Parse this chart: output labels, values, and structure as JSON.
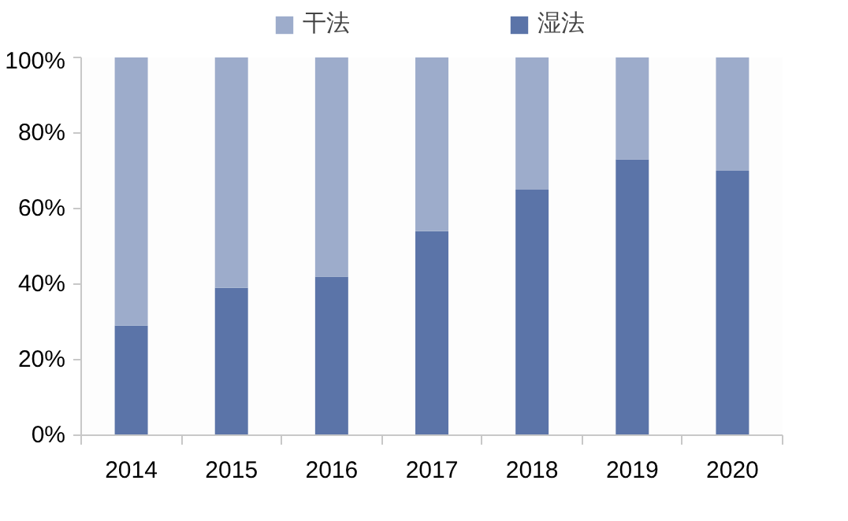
{
  "chart_data": {
    "type": "bar",
    "stacked": true,
    "categories": [
      "2014",
      "2015",
      "2016",
      "2017",
      "2018",
      "2019",
      "2020"
    ],
    "series": [
      {
        "name": "湿法",
        "color": "#5b74a8",
        "values": [
          29,
          39,
          42,
          54,
          65,
          73,
          70
        ]
      },
      {
        "name": "干法",
        "color": "#9daccb",
        "values": [
          71,
          61,
          58,
          46,
          35,
          27,
          30
        ]
      }
    ],
    "ylim": [
      0,
      100
    ],
    "yticks": [
      {
        "value": 0,
        "label": "0%"
      },
      {
        "value": 20,
        "label": "20%"
      },
      {
        "value": 40,
        "label": "40%"
      },
      {
        "value": 60,
        "label": "60%"
      },
      {
        "value": 80,
        "label": "80%"
      },
      {
        "value": 100,
        "label": "100%"
      }
    ],
    "grid": false,
    "legend": "top"
  }
}
